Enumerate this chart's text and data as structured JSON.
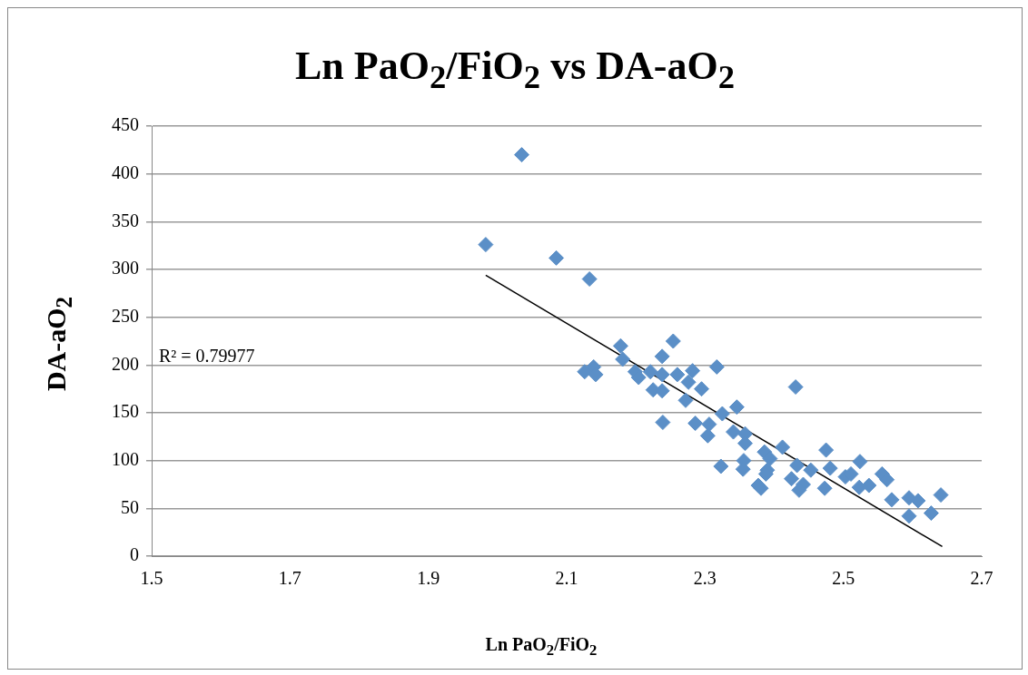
{
  "chart_data": {
    "type": "scatter",
    "title": "Ln PaO$_{2}$/FiO$_{2}$ vs DA-aO$_{2}$",
    "xlabel": "Ln PaO$_{2}$/FiO$_{2}$",
    "ylabel": "DA-aO$_{2}$",
    "xlim": [
      1.5,
      2.7
    ],
    "xticks": [
      1.5,
      1.7,
      1.9,
      2.1,
      2.3,
      2.5,
      2.7
    ],
    "ylim": [
      0,
      450
    ],
    "yticks": [
      0,
      50,
      100,
      150,
      200,
      250,
      300,
      350,
      400,
      450
    ],
    "grid": "y",
    "legend": false,
    "marker": "diamond",
    "annotations": [
      "R² = 0.79977"
    ],
    "series": [
      {
        "type": "scatter",
        "color": "#5b8fc7",
        "x": [
          1.983,
          2.035,
          2.085,
          2.133,
          2.126,
          2.139,
          2.142,
          2.178,
          2.181,
          2.254,
          2.238,
          2.199,
          2.204,
          2.221,
          2.225,
          2.238,
          2.238,
          2.26,
          2.282,
          2.276,
          2.295,
          2.272,
          2.317,
          2.239,
          2.286,
          2.306,
          2.304,
          2.325,
          2.346,
          2.341,
          2.358,
          2.358,
          2.323,
          2.356,
          2.355,
          2.377,
          2.386,
          2.39,
          2.431,
          2.412,
          2.394,
          2.381,
          2.388,
          2.433,
          2.453,
          2.425,
          2.442,
          2.436,
          2.475,
          2.481,
          2.473,
          2.503,
          2.511,
          2.524,
          2.523,
          2.537,
          2.556,
          2.563,
          2.57,
          2.595,
          2.608,
          2.595,
          2.627,
          2.641
        ],
        "values": [
          326,
          420,
          312,
          290,
          193,
          198,
          190,
          220,
          206,
          225,
          209,
          193,
          187,
          193,
          174,
          190,
          173,
          190,
          194,
          182,
          175,
          163,
          198,
          140,
          139,
          138,
          126,
          149,
          156,
          130,
          128,
          118,
          94,
          100,
          91,
          74,
          109,
          90,
          177,
          114,
          102,
          71,
          86,
          95,
          90,
          81,
          75,
          69,
          111,
          92,
          71,
          83,
          86,
          99,
          72,
          74,
          86,
          80,
          59,
          61,
          58,
          42,
          45,
          64
        ]
      },
      {
        "type": "line",
        "color": "#000000",
        "marker": "none",
        "x": [
          1.983,
          2.643
        ],
        "values": [
          294,
          10
        ]
      }
    ]
  }
}
